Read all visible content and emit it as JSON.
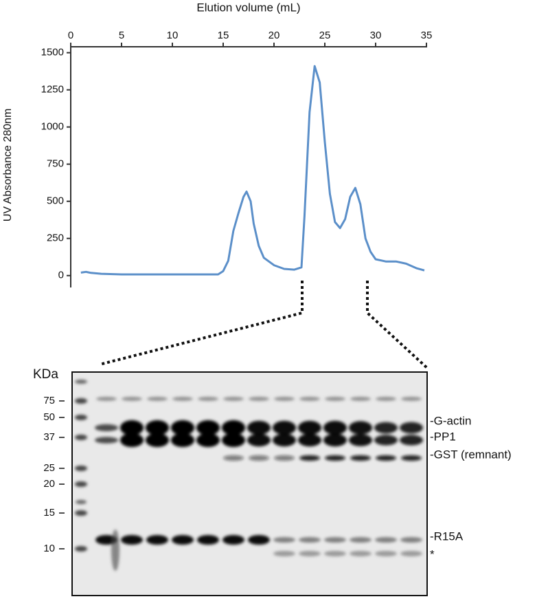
{
  "chart_data": {
    "type": "line",
    "x_label": "Elution volume (mL)",
    "y_label": "UV Absorbance 280nm",
    "xlim": [
      0,
      35
    ],
    "xticks": [
      0,
      5,
      10,
      15,
      20,
      25,
      30,
      35
    ],
    "ylim": [
      -80,
      1540
    ],
    "yticks": [
      0,
      250,
      500,
      750,
      1000,
      1250,
      1500
    ],
    "series": [
      {
        "color": "#5b8fc9",
        "x": [
          1.0,
          1.5,
          2,
          3,
          5,
          10,
          14.5,
          15,
          15.5,
          16,
          16.5,
          17,
          17.3,
          17.7,
          18,
          18.5,
          19,
          20,
          21,
          22,
          22.7,
          23,
          23.5,
          24,
          24.5,
          25,
          25.5,
          26,
          26.5,
          27,
          27.5,
          28,
          28.5,
          29,
          29.5,
          30,
          31,
          32,
          33,
          34,
          34.8
        ],
        "values": [
          20,
          25,
          18,
          12,
          8,
          8,
          8,
          30,
          100,
          300,
          420,
          530,
          565,
          500,
          350,
          200,
          120,
          70,
          45,
          40,
          55,
          400,
          1100,
          1410,
          1300,
          900,
          550,
          360,
          320,
          380,
          530,
          590,
          480,
          250,
          160,
          110,
          95,
          95,
          80,
          50,
          35
        ]
      }
    ]
  },
  "gel": {
    "unit_label": "KDa",
    "markers": [
      "75",
      "50",
      "37",
      "25",
      "20",
      "15",
      "10"
    ],
    "bands": [
      "-G-actin",
      "-PP1",
      "-GST (remnant)",
      "-R15A",
      "*"
    ]
  }
}
